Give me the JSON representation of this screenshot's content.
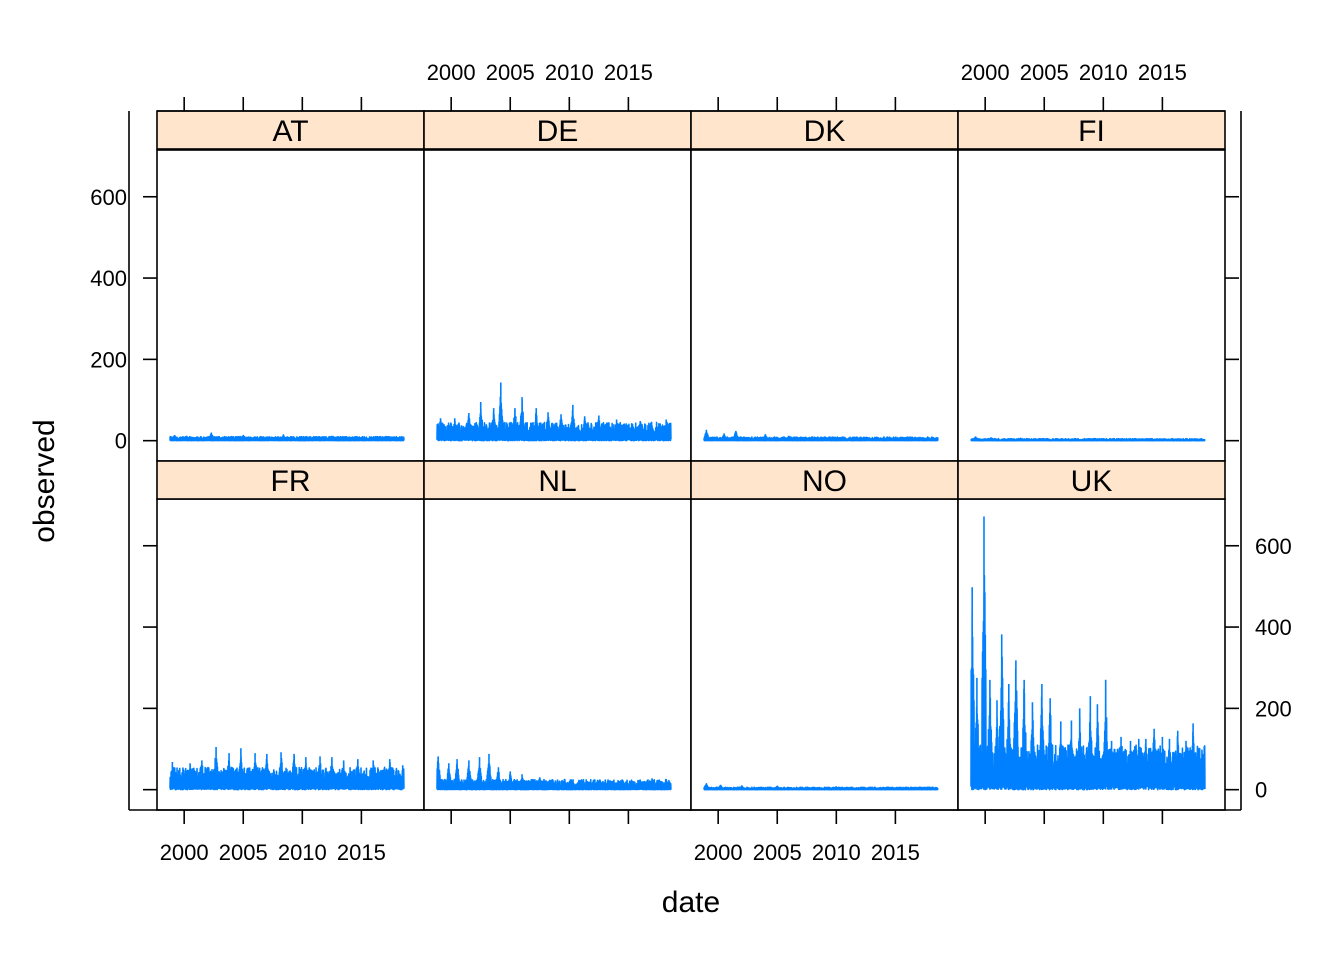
{
  "chart_data": {
    "type": "line",
    "layout": "lattice-2x4",
    "xlabel": "date",
    "ylabel": "observed",
    "xlim": [
      1997.7,
      2020.3
    ],
    "ylim": [
      -50,
      715
    ],
    "x_ticks": [
      "2000",
      "2005",
      "2010",
      "2015"
    ],
    "y_ticks": [
      "0",
      "200",
      "400",
      "600"
    ],
    "strip_color": "#ffe5cc",
    "line_color": "#0080ff",
    "panels": [
      {
        "name": "AT",
        "x_range": [
          1998.8,
          2018.6
        ],
        "typical": [
          4,
          10
        ],
        "peaks": [
          [
            1999.2,
            14
          ],
          [
            2000.2,
            12
          ],
          [
            2002.3,
            20
          ],
          [
            2005.0,
            14
          ],
          [
            2008.4,
            15
          ],
          [
            2012.5,
            12
          ],
          [
            2015.0,
            9
          ]
        ]
      },
      {
        "name": "DE",
        "x_range": [
          1998.8,
          2018.6
        ],
        "typical": [
          18,
          45
        ],
        "peaks": [
          [
            1999.1,
            55
          ],
          [
            2000.3,
            55
          ],
          [
            2001.5,
            68
          ],
          [
            2002.5,
            95
          ],
          [
            2003.6,
            80
          ],
          [
            2004.2,
            143
          ],
          [
            2005.4,
            80
          ],
          [
            2006.0,
            107
          ],
          [
            2007.2,
            80
          ],
          [
            2008.2,
            70
          ],
          [
            2009.3,
            65
          ],
          [
            2010.3,
            88
          ],
          [
            2011.3,
            60
          ],
          [
            2012.5,
            62
          ],
          [
            2014.0,
            52
          ],
          [
            2016.0,
            48
          ],
          [
            2018.2,
            52
          ]
        ]
      },
      {
        "name": "DK",
        "x_range": [
          1998.8,
          2018.6
        ],
        "typical": [
          3,
          9
        ],
        "peaks": [
          [
            1999.0,
            27
          ],
          [
            2000.5,
            18
          ],
          [
            2001.5,
            24
          ],
          [
            2004.0,
            16
          ],
          [
            2006.0,
            12
          ],
          [
            2009.0,
            10
          ],
          [
            2012.0,
            8
          ]
        ]
      },
      {
        "name": "FI",
        "x_range": [
          1998.8,
          2018.6
        ],
        "typical": [
          1,
          5
        ],
        "peaks": [
          [
            1999.2,
            10
          ],
          [
            2000.5,
            8
          ],
          [
            2003.0,
            7
          ],
          [
            2006.0,
            6
          ],
          [
            2010.0,
            5
          ]
        ]
      },
      {
        "name": "FR",
        "x_range": [
          1998.8,
          2018.6
        ],
        "typical": [
          25,
          55
        ],
        "peaks": [
          [
            1999.0,
            68
          ],
          [
            2000.5,
            65
          ],
          [
            2001.5,
            72
          ],
          [
            2002.7,
            105
          ],
          [
            2003.8,
            90
          ],
          [
            2004.8,
            102
          ],
          [
            2006.0,
            90
          ],
          [
            2007.0,
            88
          ],
          [
            2008.2,
            92
          ],
          [
            2009.3,
            88
          ],
          [
            2010.3,
            80
          ],
          [
            2011.5,
            82
          ],
          [
            2012.5,
            80
          ],
          [
            2013.5,
            72
          ],
          [
            2014.7,
            75
          ],
          [
            2016.0,
            72
          ],
          [
            2017.4,
            75
          ],
          [
            2018.5,
            60
          ]
        ]
      },
      {
        "name": "NL",
        "x_range": [
          1998.8,
          2018.6
        ],
        "typical": [
          8,
          25
        ],
        "peaks": [
          [
            1998.9,
            82
          ],
          [
            1999.8,
            65
          ],
          [
            2000.5,
            75
          ],
          [
            2001.5,
            72
          ],
          [
            2002.4,
            80
          ],
          [
            2003.2,
            88
          ],
          [
            2004.0,
            55
          ],
          [
            2005.0,
            45
          ],
          [
            2006.0,
            38
          ],
          [
            2007.5,
            30
          ],
          [
            2009.0,
            25
          ],
          [
            2012.0,
            20
          ],
          [
            2014.0,
            18
          ],
          [
            2016.0,
            25
          ],
          [
            2017.0,
            28
          ],
          [
            2018.2,
            26
          ]
        ]
      },
      {
        "name": "NO",
        "x_range": [
          1998.8,
          2018.6
        ],
        "typical": [
          2,
          6
        ],
        "peaks": [
          [
            1999.0,
            15
          ],
          [
            2000.2,
            12
          ],
          [
            2002.0,
            10
          ],
          [
            2005.0,
            9
          ],
          [
            2010.0,
            8
          ],
          [
            2016.0,
            6
          ]
        ]
      },
      {
        "name": "UK",
        "x_range": [
          1998.8,
          2018.6
        ],
        "typical": [
          45,
          110
        ],
        "peaks": [
          [
            1998.9,
            498
          ],
          [
            1999.3,
            275
          ],
          [
            1999.9,
            672
          ],
          [
            2000.4,
            270
          ],
          [
            2001.0,
            220
          ],
          [
            2001.4,
            382
          ],
          [
            2002.0,
            260
          ],
          [
            2002.6,
            318
          ],
          [
            2003.3,
            270
          ],
          [
            2004.0,
            215
          ],
          [
            2004.8,
            260
          ],
          [
            2005.5,
            225
          ],
          [
            2006.4,
            168
          ],
          [
            2007.3,
            170
          ],
          [
            2008.0,
            200
          ],
          [
            2008.9,
            230
          ],
          [
            2009.5,
            210
          ],
          [
            2010.2,
            270
          ],
          [
            2010.7,
            120
          ],
          [
            2011.5,
            130
          ],
          [
            2012.3,
            120
          ],
          [
            2013.0,
            125
          ],
          [
            2013.6,
            125
          ],
          [
            2014.3,
            150
          ],
          [
            2015.0,
            130
          ],
          [
            2015.6,
            125
          ],
          [
            2016.3,
            145
          ],
          [
            2017.0,
            120
          ],
          [
            2017.6,
            163
          ],
          [
            2018.4,
            60
          ]
        ]
      }
    ]
  }
}
